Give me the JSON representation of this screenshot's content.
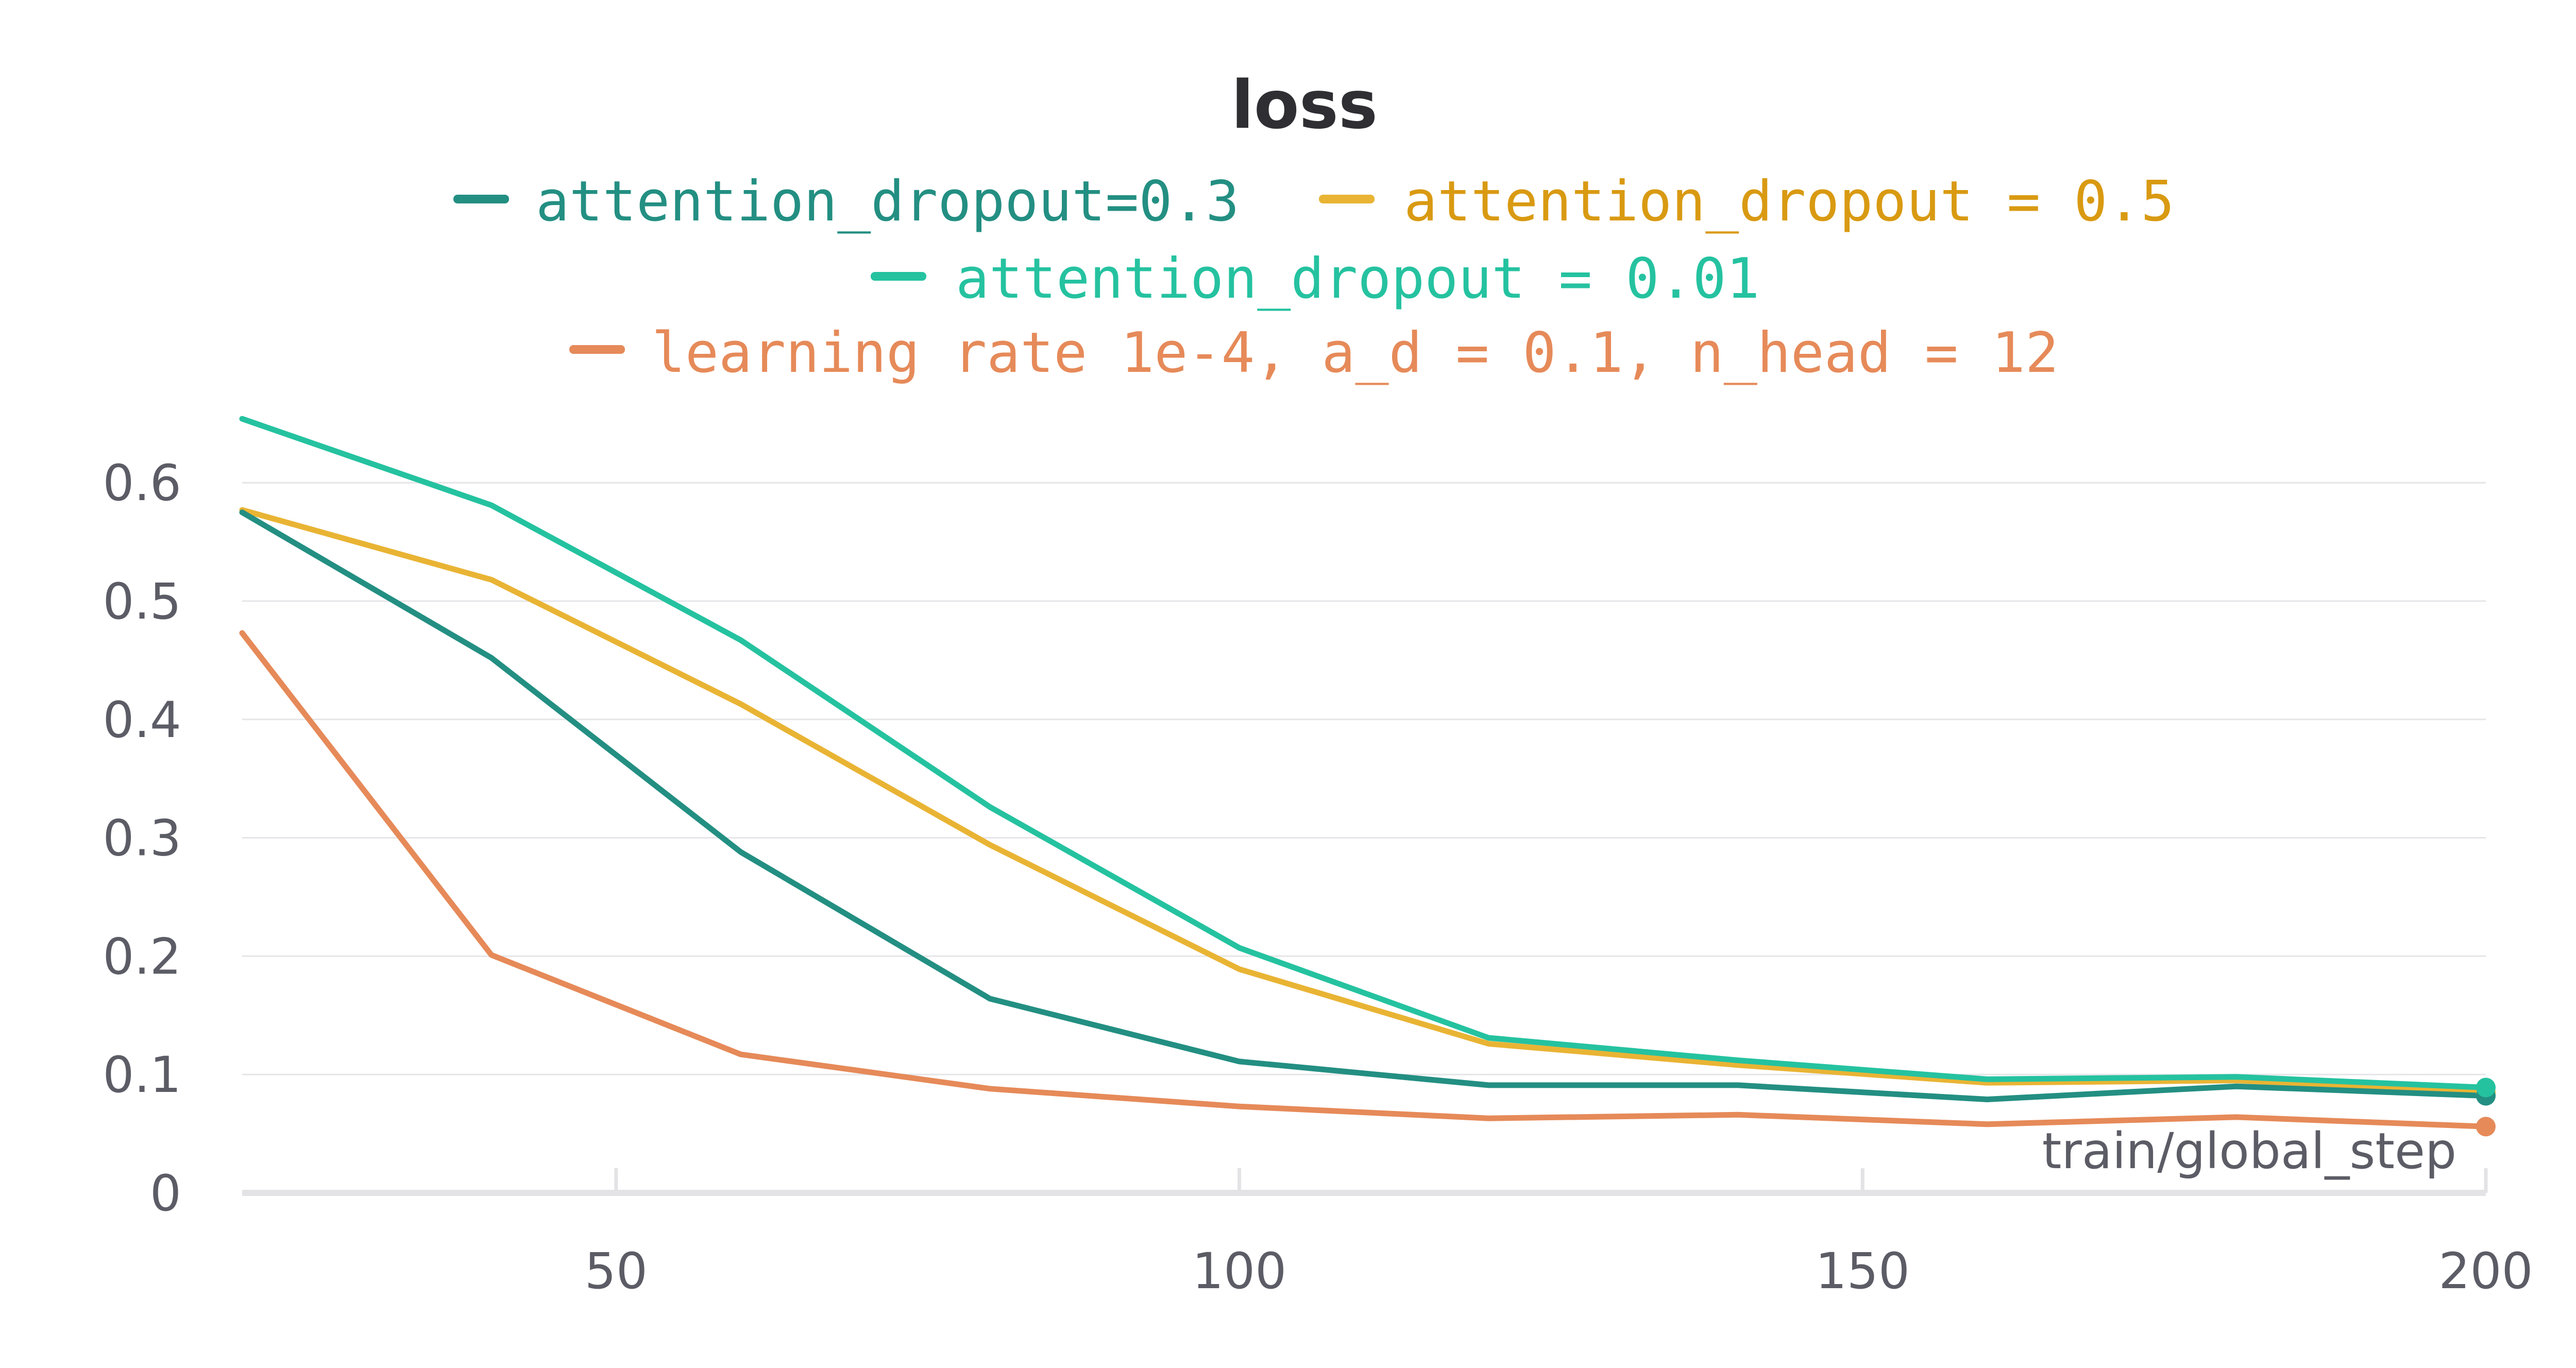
{
  "chart_data": {
    "type": "line",
    "title": "loss",
    "xlabel": "train/global_step",
    "ylabel": "",
    "xlim": [
      20,
      200
    ],
    "ylim": [
      0,
      0.66
    ],
    "x_ticks": [
      50,
      100,
      150,
      200
    ],
    "y_ticks": [
      0,
      0.1,
      0.2,
      0.3,
      0.4,
      0.5,
      0.6
    ],
    "y_tick_labels": [
      "0",
      "0.1",
      "0.2",
      "0.3",
      "0.4",
      "0.5",
      "0.6"
    ],
    "grid": true,
    "legend_position": "top",
    "x": [
      20,
      40,
      60,
      80,
      100,
      120,
      140,
      160,
      180,
      200
    ],
    "series": [
      {
        "name": "attention_dropout=0.3",
        "color": "#238f82",
        "values": [
          0.575,
          0.452,
          0.288,
          0.164,
          0.111,
          0.091,
          0.091,
          0.079,
          0.09,
          0.082
        ]
      },
      {
        "name": "attention_dropout = 0.5",
        "color": "#e9b434",
        "values": [
          0.577,
          0.518,
          0.413,
          0.294,
          0.189,
          0.126,
          0.108,
          0.093,
          0.095,
          0.085
        ]
      },
      {
        "name": "attention_dropout = 0.01",
        "color": "#25c2a0",
        "values": [
          0.654,
          0.581,
          0.467,
          0.326,
          0.207,
          0.131,
          0.112,
          0.096,
          0.098,
          0.089
        ]
      },
      {
        "name": "learning rate 1e-4, a_d = 0.1, n_head = 12",
        "color": "#e68a59",
        "values": [
          0.473,
          0.201,
          0.117,
          0.088,
          0.073,
          0.063,
          0.066,
          0.058,
          0.064,
          0.056
        ]
      }
    ]
  }
}
